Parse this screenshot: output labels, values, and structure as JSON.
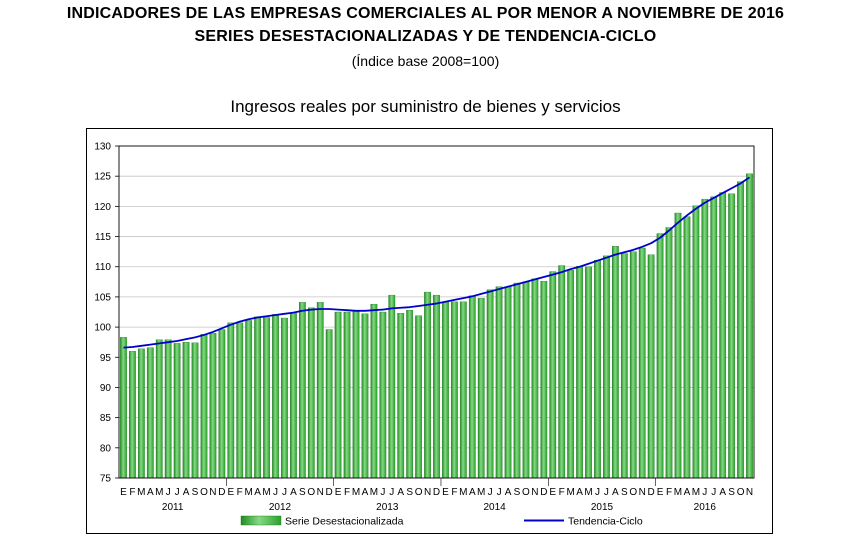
{
  "header": {
    "title_line1": "INDICADORES DE LAS EMPRESAS COMERCIALES AL POR MENOR A NOVIEMBRE DE 2016",
    "title_line2": "SERIES DESESTACIONALIZADAS Y DE TENDENCIA-CICLO",
    "subtitle": "(Índice base 2008=100)"
  },
  "chart_data": {
    "type": "bar",
    "title": "Ingresos reales por suministro de bienes y servicios",
    "xlabel": "",
    "ylabel": "",
    "ylim": [
      75,
      130
    ],
    "yticks": [
      75,
      80,
      85,
      90,
      95,
      100,
      105,
      110,
      115,
      120,
      125,
      130
    ],
    "grid": true,
    "legend_position": "bottom",
    "month_labels": [
      "E",
      "F",
      "M",
      "A",
      "M",
      "J",
      "J",
      "A",
      "S",
      "O",
      "N",
      "D"
    ],
    "year_labels": [
      "2011",
      "2012",
      "2013",
      "2014",
      "2015",
      "2016"
    ],
    "categories": [
      "2011-01",
      "2011-02",
      "2011-03",
      "2011-04",
      "2011-05",
      "2011-06",
      "2011-07",
      "2011-08",
      "2011-09",
      "2011-10",
      "2011-11",
      "2011-12",
      "2012-01",
      "2012-02",
      "2012-03",
      "2012-04",
      "2012-05",
      "2012-06",
      "2012-07",
      "2012-08",
      "2012-09",
      "2012-10",
      "2012-11",
      "2012-12",
      "2013-01",
      "2013-02",
      "2013-03",
      "2013-04",
      "2013-05",
      "2013-06",
      "2013-07",
      "2013-08",
      "2013-09",
      "2013-10",
      "2013-11",
      "2013-12",
      "2014-01",
      "2014-02",
      "2014-03",
      "2014-04",
      "2014-05",
      "2014-06",
      "2014-07",
      "2014-08",
      "2014-09",
      "2014-10",
      "2014-11",
      "2014-12",
      "2015-01",
      "2015-02",
      "2015-03",
      "2015-04",
      "2015-05",
      "2015-06",
      "2015-07",
      "2015-08",
      "2015-09",
      "2015-10",
      "2015-11",
      "2015-12",
      "2016-01",
      "2016-02",
      "2016-03",
      "2016-04",
      "2016-05",
      "2016-06",
      "2016-07",
      "2016-08",
      "2016-09",
      "2016-10",
      "2016-11"
    ],
    "series": [
      {
        "name": "Serie Desestacionalizada",
        "kind": "bar",
        "color": "#3cb43c",
        "values": [
          98.3,
          96.0,
          96.4,
          96.6,
          97.9,
          97.9,
          97.3,
          97.5,
          97.4,
          98.8,
          99.0,
          99.6,
          100.7,
          100.7,
          101.1,
          101.7,
          101.6,
          102.1,
          101.5,
          102.3,
          104.1,
          103.2,
          104.1,
          99.6,
          102.5,
          102.5,
          102.6,
          102.2,
          103.8,
          102.5,
          105.3,
          102.3,
          102.8,
          101.9,
          105.8,
          105.3,
          104.2,
          104.2,
          104.2,
          105.2,
          104.8,
          106.2,
          106.7,
          106.7,
          107.3,
          107.5,
          108.0,
          107.6,
          109.2,
          110.2,
          109.4,
          110.1,
          110.0,
          111.1,
          111.8,
          113.4,
          112.2,
          112.5,
          113.1,
          112.0,
          115.5,
          116.5,
          118.9,
          118.3,
          120.1,
          121.2,
          121.6,
          122.3,
          122.1,
          124.1,
          125.4
        ]
      },
      {
        "name": "Tendencia-Ciclo",
        "kind": "line",
        "color": "#0000cc",
        "values": [
          96.6,
          96.7,
          96.9,
          97.1,
          97.3,
          97.5,
          97.7,
          98.0,
          98.3,
          98.7,
          99.2,
          99.8,
          100.4,
          100.9,
          101.3,
          101.6,
          101.8,
          102.0,
          102.2,
          102.4,
          102.7,
          102.9,
          103.0,
          103.0,
          102.9,
          102.8,
          102.7,
          102.7,
          102.8,
          102.9,
          103.1,
          103.2,
          103.3,
          103.5,
          103.7,
          103.9,
          104.2,
          104.5,
          104.8,
          105.1,
          105.5,
          105.9,
          106.3,
          106.7,
          107.1,
          107.5,
          107.9,
          108.3,
          108.7,
          109.1,
          109.6,
          110.0,
          110.5,
          111.0,
          111.5,
          112.0,
          112.4,
          112.8,
          113.3,
          113.9,
          114.8,
          116.0,
          117.3,
          118.5,
          119.6,
          120.6,
          121.4,
          122.2,
          123.0,
          123.8,
          124.8
        ]
      }
    ]
  }
}
